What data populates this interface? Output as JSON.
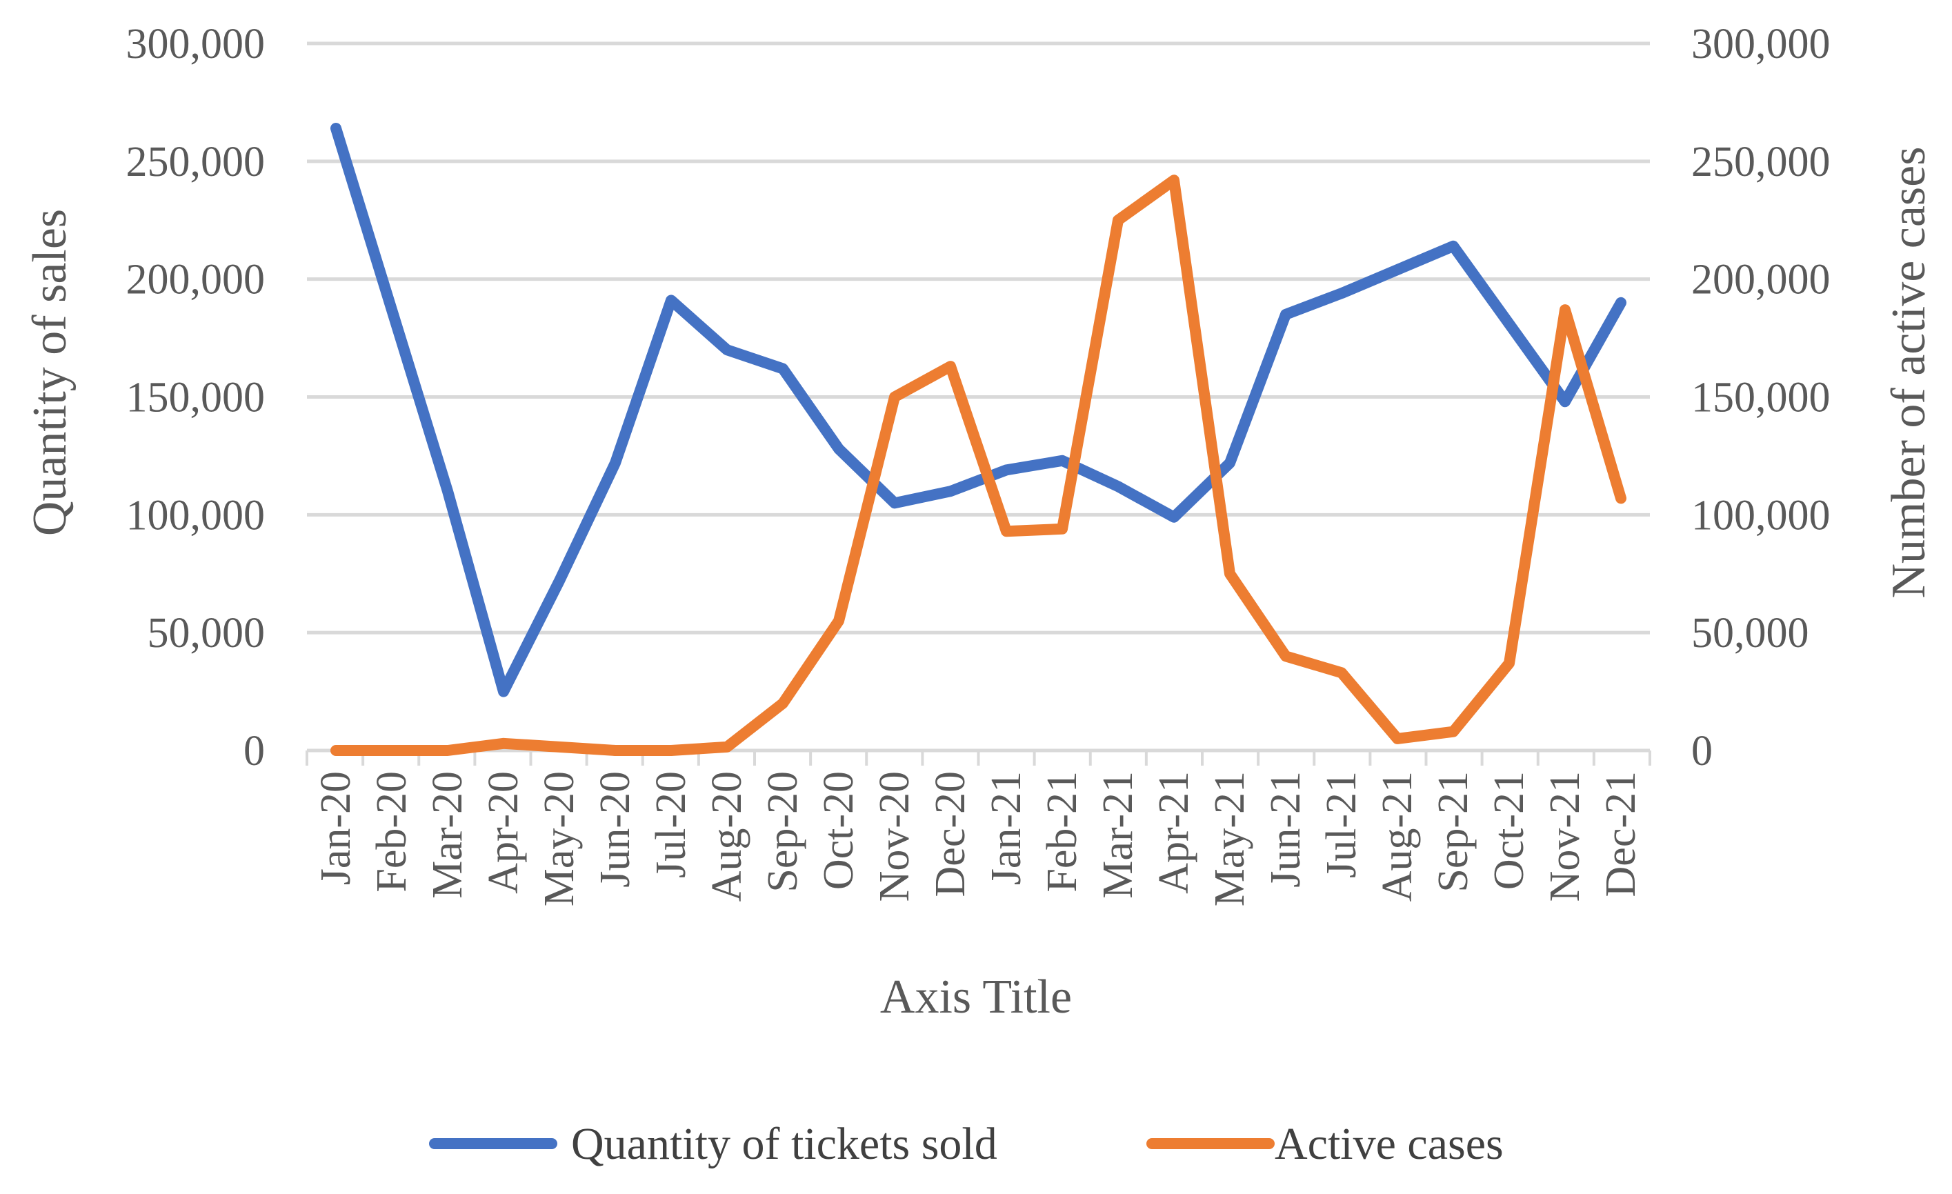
{
  "chart_data": {
    "type": "line",
    "title": "",
    "xlabel": "Axis Title",
    "ylabel": "Quantity of sales",
    "y2label": "Number of active cases",
    "ylim": [
      0,
      300000
    ],
    "y2lim": [
      0,
      300000
    ],
    "yticks": [
      "0",
      "50,000",
      "100,000",
      "150,000",
      "200,000",
      "250,000",
      "300,000"
    ],
    "y2ticks": [
      "0",
      "50,000",
      "100,000",
      "150,000",
      "200,000",
      "250,000",
      "300,000"
    ],
    "categories": [
      "Jan-20",
      "Feb-20",
      "Mar-20",
      "Apr-20",
      "May-20",
      "Jun-20",
      "Jul-20",
      "Aug-20",
      "Sep-20",
      "Oct-20",
      "Nov-20",
      "Dec-20",
      "Jan-21",
      "Feb-21",
      "Mar-21",
      "Apr-21",
      "May-21",
      "Jun-21",
      "Jul-21",
      "Aug-21",
      "Sep-21",
      "Oct-21",
      "Nov-21",
      "Dec-21"
    ],
    "grid": true,
    "legend_position": "bottom",
    "series": [
      {
        "name": "Quantity of tickets sold",
        "axis": "left",
        "color": "#4472C4",
        "values": [
          264000,
          187000,
          110000,
          25000,
          72000,
          122000,
          191000,
          170000,
          162000,
          128000,
          105000,
          110000,
          119000,
          123000,
          112000,
          99000,
          122000,
          185000,
          194000,
          204000,
          214000,
          181000,
          148000,
          190000
        ]
      },
      {
        "name": "Active cases",
        "axis": "right",
        "color": "#ED7D31",
        "values": [
          0,
          0,
          0,
          3000,
          1500,
          0,
          0,
          1500,
          20000,
          55000,
          150000,
          163000,
          93000,
          94000,
          225000,
          242000,
          75000,
          40000,
          33000,
          5000,
          8000,
          37000,
          187000,
          107000
        ]
      }
    ]
  }
}
